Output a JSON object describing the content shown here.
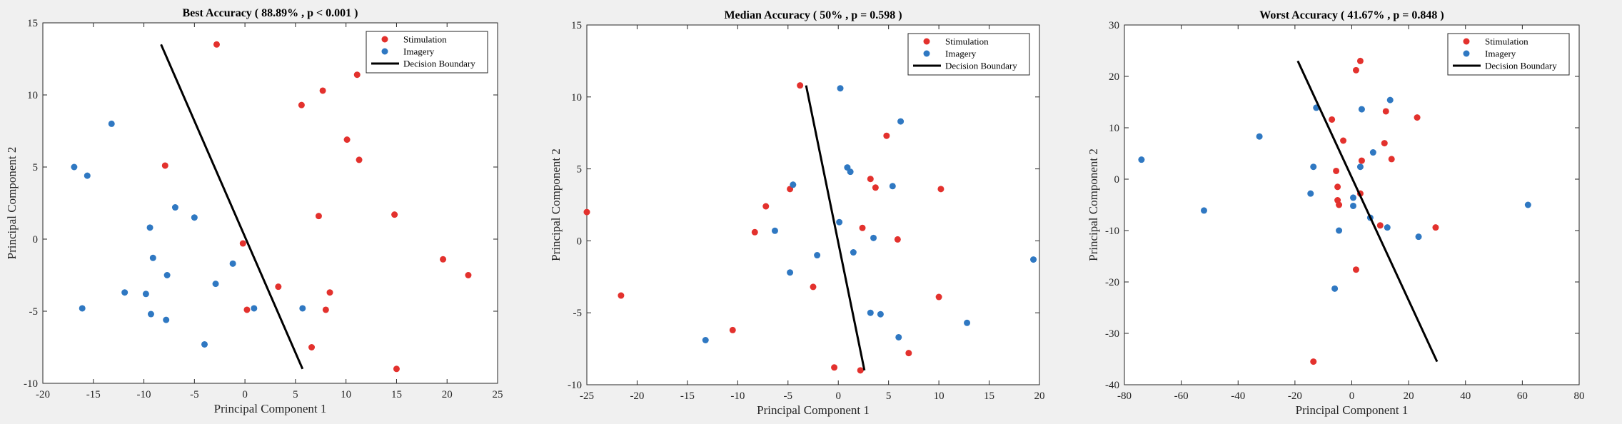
{
  "colors": {
    "stimulation": "#e3312d",
    "imagery": "#2f78c2",
    "boundary": "#000000",
    "axes_bg": "#ffffff",
    "figure_bg": "#f0f0f0"
  },
  "legend_placement": "top-right",
  "chart_data": [
    {
      "type": "scatter",
      "title": "Best Accuracy ( 88.89% , p < 0.001 )",
      "xlabel": "Principal Component 1",
      "ylabel": "Principal Component 2",
      "xlim": [
        -20,
        25
      ],
      "ylim": [
        -10,
        15
      ],
      "xticks": [
        -20,
        -15,
        -10,
        -5,
        0,
        5,
        10,
        15,
        20,
        25
      ],
      "yticks": [
        -10,
        -5,
        0,
        5,
        10,
        15
      ],
      "legend": [
        "Stimulation",
        "Imagery",
        "Decision Boundary"
      ],
      "series": [
        {
          "name": "Stimulation",
          "points": [
            [
              -2.8,
              13.5
            ],
            [
              11.1,
              11.4
            ],
            [
              7.7,
              10.3
            ],
            [
              5.6,
              9.3
            ],
            [
              10.1,
              6.9
            ],
            [
              11.3,
              5.5
            ],
            [
              -7.9,
              5.1
            ],
            [
              7.3,
              1.6
            ],
            [
              14.8,
              1.7
            ],
            [
              -0.2,
              -0.3
            ],
            [
              19.6,
              -1.4
            ],
            [
              22.1,
              -2.5
            ],
            [
              3.3,
              -3.3
            ],
            [
              8.4,
              -3.7
            ],
            [
              0.2,
              -4.9
            ],
            [
              8.0,
              -4.9
            ],
            [
              6.6,
              -7.5
            ],
            [
              15.0,
              -9.0
            ]
          ]
        },
        {
          "name": "Imagery",
          "points": [
            [
              -13.2,
              8.0
            ],
            [
              -16.9,
              5.0
            ],
            [
              -15.6,
              4.4
            ],
            [
              -6.9,
              2.2
            ],
            [
              -5.0,
              1.5
            ],
            [
              -9.4,
              0.8
            ],
            [
              -9.1,
              -1.3
            ],
            [
              -1.2,
              -1.7
            ],
            [
              -7.7,
              -2.5
            ],
            [
              -2.9,
              -3.1
            ],
            [
              -11.9,
              -3.7
            ],
            [
              -9.8,
              -3.8
            ],
            [
              -16.1,
              -4.8
            ],
            [
              0.9,
              -4.8
            ],
            [
              5.7,
              -4.8
            ],
            [
              -9.3,
              -5.2
            ],
            [
              -7.8,
              -5.6
            ],
            [
              -4.0,
              -7.3
            ]
          ]
        },
        {
          "name": "Decision Boundary",
          "line": [
            [
              -8.3,
              13.5
            ],
            [
              5.7,
              -9.0
            ]
          ]
        }
      ]
    },
    {
      "type": "scatter",
      "title": "Median Accuracy ( 50% , p = 0.598 )",
      "xlabel": "Principal Component 1",
      "ylabel": "Principal Component 2",
      "xlim": [
        -25,
        20
      ],
      "ylim": [
        -10,
        15
      ],
      "xticks": [
        -25,
        -20,
        -15,
        -10,
        -5,
        0,
        5,
        10,
        15,
        20
      ],
      "yticks": [
        -10,
        -5,
        0,
        5,
        10,
        15
      ],
      "legend": [
        "Stimulation",
        "Imagery",
        "Decision Boundary"
      ],
      "series": [
        {
          "name": "Stimulation",
          "points": [
            [
              -3.8,
              10.8
            ],
            [
              4.8,
              7.3
            ],
            [
              3.2,
              4.3
            ],
            [
              3.7,
              3.7
            ],
            [
              10.2,
              3.6
            ],
            [
              -4.8,
              3.6
            ],
            [
              -7.2,
              2.4
            ],
            [
              -25.0,
              2.0
            ],
            [
              -8.3,
              0.6
            ],
            [
              2.4,
              0.9
            ],
            [
              5.9,
              0.1
            ],
            [
              -2.5,
              -3.2
            ],
            [
              -21.6,
              -3.8
            ],
            [
              10.0,
              -3.9
            ],
            [
              -10.5,
              -6.2
            ],
            [
              7.0,
              -7.8
            ],
            [
              -0.4,
              -8.8
            ],
            [
              2.2,
              -9.0
            ]
          ]
        },
        {
          "name": "Imagery",
          "points": [
            [
              0.2,
              10.6
            ],
            [
              6.2,
              8.3
            ],
            [
              0.9,
              5.1
            ],
            [
              1.2,
              4.8
            ],
            [
              -4.5,
              3.9
            ],
            [
              5.4,
              3.8
            ],
            [
              0.1,
              1.3
            ],
            [
              -6.3,
              0.7
            ],
            [
              3.5,
              0.2
            ],
            [
              1.5,
              -0.8
            ],
            [
              -2.1,
              -1.0
            ],
            [
              19.4,
              -1.3
            ],
            [
              -4.8,
              -2.2
            ],
            [
              3.2,
              -5.0
            ],
            [
              4.2,
              -5.1
            ],
            [
              12.8,
              -5.7
            ],
            [
              -13.2,
              -6.9
            ],
            [
              6.0,
              -6.7
            ]
          ]
        },
        {
          "name": "Decision Boundary",
          "line": [
            [
              -3.2,
              10.8
            ],
            [
              2.6,
              -9.0
            ]
          ]
        }
      ]
    },
    {
      "type": "scatter",
      "title": "Worst Accuracy ( 41.67% , p = 0.848 )",
      "xlabel": "Principal Component 1",
      "ylabel": "Principal Component 2",
      "xlim": [
        -80,
        80
      ],
      "ylim": [
        -40,
        30
      ],
      "xticks": [
        -80,
        -60,
        -40,
        -20,
        0,
        20,
        40,
        60,
        80
      ],
      "yticks": [
        -40,
        -30,
        -20,
        -10,
        0,
        10,
        20,
        30
      ],
      "legend": [
        "Stimulation",
        "Imagery",
        "Decision Boundary"
      ],
      "series": [
        {
          "name": "Stimulation",
          "points": [
            [
              3.0,
              23.0
            ],
            [
              1.5,
              21.2
            ],
            [
              12.0,
              13.2
            ],
            [
              23.0,
              12.0
            ],
            [
              -7.0,
              11.6
            ],
            [
              -3.0,
              7.5
            ],
            [
              11.5,
              7.0
            ],
            [
              14.0,
              3.9
            ],
            [
              3.5,
              3.6
            ],
            [
              -5.5,
              1.6
            ],
            [
              -5.0,
              -1.5
            ],
            [
              3.0,
              -2.8
            ],
            [
              -5.0,
              -4.1
            ],
            [
              -4.5,
              -5.0
            ],
            [
              10.0,
              -9.0
            ],
            [
              29.5,
              -9.4
            ],
            [
              1.5,
              -17.6
            ],
            [
              -13.5,
              -35.5
            ]
          ]
        },
        {
          "name": "Imagery",
          "points": [
            [
              13.5,
              15.4
            ],
            [
              -12.5,
              13.9
            ],
            [
              3.5,
              13.6
            ],
            [
              -32.5,
              8.3
            ],
            [
              7.5,
              5.2
            ],
            [
              -74.0,
              3.8
            ],
            [
              -13.5,
              2.4
            ],
            [
              3.0,
              2.4
            ],
            [
              -14.5,
              -2.8
            ],
            [
              0.5,
              -3.6
            ],
            [
              -52.0,
              -6.1
            ],
            [
              0.5,
              -5.2
            ],
            [
              6.5,
              -7.5
            ],
            [
              -4.5,
              -10.0
            ],
            [
              12.5,
              -9.4
            ],
            [
              23.5,
              -11.2
            ],
            [
              62.0,
              -5.0
            ],
            [
              -6.0,
              -21.3
            ]
          ]
        },
        {
          "name": "Decision Boundary",
          "line": [
            [
              -19.0,
              23.0
            ],
            [
              30.0,
              -35.5
            ]
          ]
        }
      ]
    }
  ]
}
